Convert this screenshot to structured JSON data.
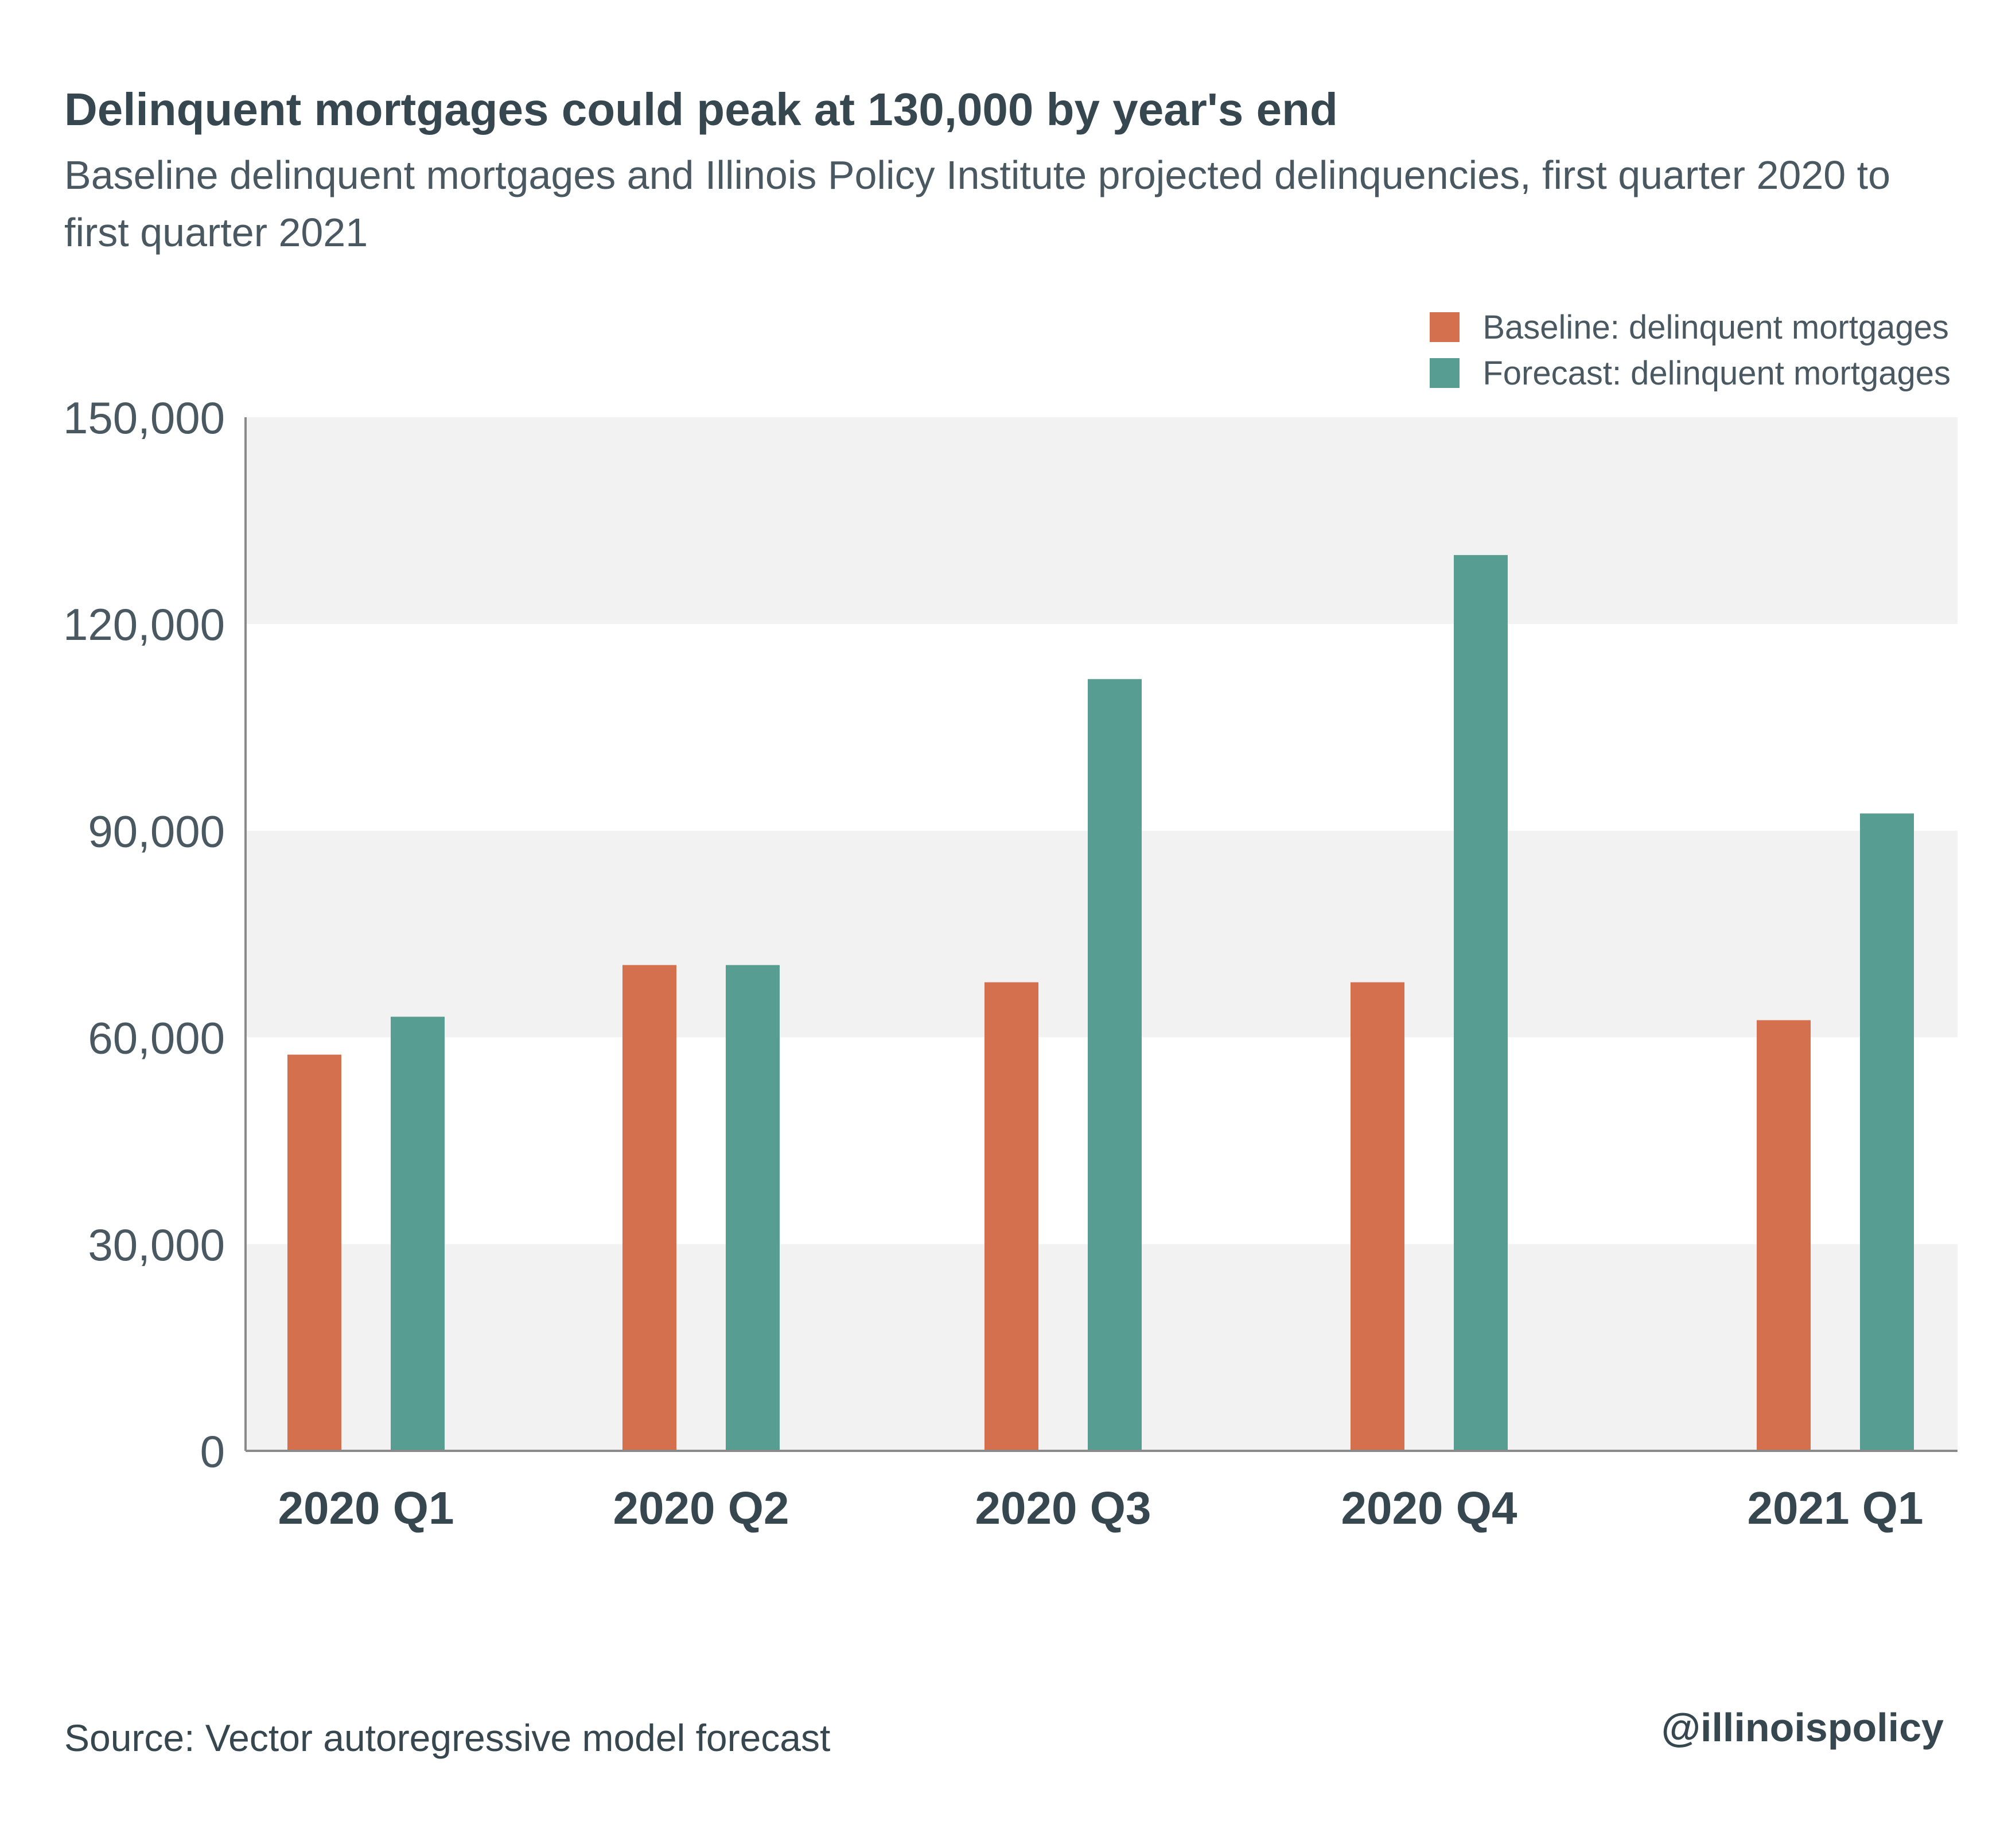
{
  "header": {
    "title": "Delinquent mortgages could peak at 130,000 by year's end",
    "subtitle": "Baseline delinquent mortgages and Illinois Policy Institute projected delinquencies, first quarter 2020 to first quarter 2021"
  },
  "footer": {
    "source": "Source:  Vector autoregressive model forecast",
    "handle": "@illinoispolicy"
  },
  "colors": {
    "baseline": "#d4704d",
    "forecast": "#579d91",
    "band": "#f2f2f2",
    "axis": "#8a8a8a",
    "text": "#37474f"
  },
  "chart_data": {
    "type": "bar",
    "categories": [
      "2020 Q1",
      "2020 Q2",
      "2020 Q3",
      "2020 Q4",
      "2021 Q1"
    ],
    "series": [
      {
        "name": "Baseline: delinquent mortgages",
        "values": [
          57500,
          70500,
          68000,
          68000,
          62500
        ]
      },
      {
        "name": "Forecast: delinquent mortgages",
        "values": [
          63000,
          70500,
          112000,
          130000,
          92500
        ]
      }
    ],
    "ylim": [
      0,
      150000
    ],
    "yticks": [
      0,
      30000,
      60000,
      90000,
      120000,
      150000
    ],
    "ytick_labels": [
      "0",
      "30,000",
      "60,000",
      "90,000",
      "120,000",
      "150,000"
    ],
    "xlabel": "",
    "ylabel": "",
    "legend_position": "top-right",
    "grid": "alternating horizontal bands"
  }
}
